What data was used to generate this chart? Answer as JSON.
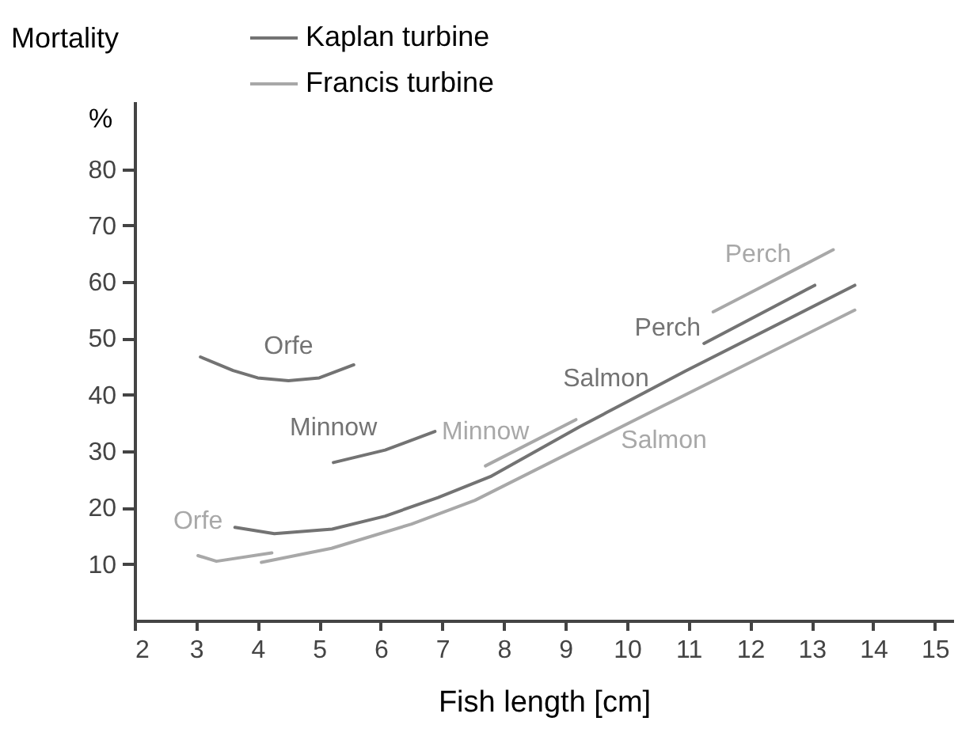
{
  "chart_data": {
    "type": "line",
    "title": "Mortality",
    "xlabel": "Fish length [cm]",
    "ylabel": "%",
    "xlim": [
      2,
      15.3
    ],
    "xticks": [
      2,
      3,
      4,
      5,
      6,
      7,
      8,
      9,
      10,
      11,
      12,
      13,
      14,
      15
    ],
    "ylim": [
      0,
      92
    ],
    "yticks": [
      10,
      20,
      30,
      40,
      50,
      60,
      70,
      80
    ],
    "grid": false,
    "legend": "top",
    "series": [
      {
        "name": "Kaplan turbine",
        "color": "#737373",
        "x": [
          3.07,
          3.6,
          4.0,
          4.5,
          5.0,
          5.56,
          null,
          5.23,
          6.07,
          6.88,
          null,
          3.63,
          4.27,
          5.21,
          6.07,
          6.93,
          7.78,
          9.24,
          9.66,
          10.95,
          13.7,
          null,
          11.25,
          13.05
        ],
        "values": [
          46.7,
          44.3,
          43.0,
          42.5,
          43.0,
          45.3,
          null,
          28.0,
          30.2,
          33.5,
          null,
          16.5,
          15.4,
          16.2,
          18.5,
          21.8,
          25.5,
          34.4,
          36.8,
          44.2,
          59.4,
          null,
          49.1,
          59.4
        ]
      },
      {
        "name": "Francis turbine",
        "color": "#a8a8a8",
        "x": [
          3.03,
          3.33,
          4.23,
          null,
          7.7,
          9.17,
          null,
          4.06,
          5.2,
          6.5,
          7.53,
          10.6,
          13.7,
          null,
          11.4,
          12.13,
          13.35
        ],
        "values": [
          11.5,
          10.5,
          12.0,
          null,
          27.4,
          35.6,
          null,
          10.3,
          12.8,
          17.1,
          21.3,
          38.1,
          55.0,
          null,
          54.7,
          58.8,
          65.7
        ]
      }
    ],
    "annotations": [
      {
        "text": "Orfe",
        "x": 4.5,
        "y": 42.5
      },
      {
        "text": "Minnow",
        "x": 5.23,
        "y": 28.0
      },
      {
        "text": "Salmon",
        "x": 9.66,
        "y": 36.8
      },
      {
        "text": "Perch",
        "x": 11.25,
        "y": 49.1
      },
      {
        "text": "Orfe",
        "x": 3.03,
        "y": 11.5
      },
      {
        "text": "Minnow",
        "x": 7.7,
        "y": 27.4
      },
      {
        "text": "Salmon",
        "x": 10.6,
        "y": 38.1
      },
      {
        "text": "Perch",
        "x": 12.13,
        "y": 58.8
      }
    ]
  }
}
